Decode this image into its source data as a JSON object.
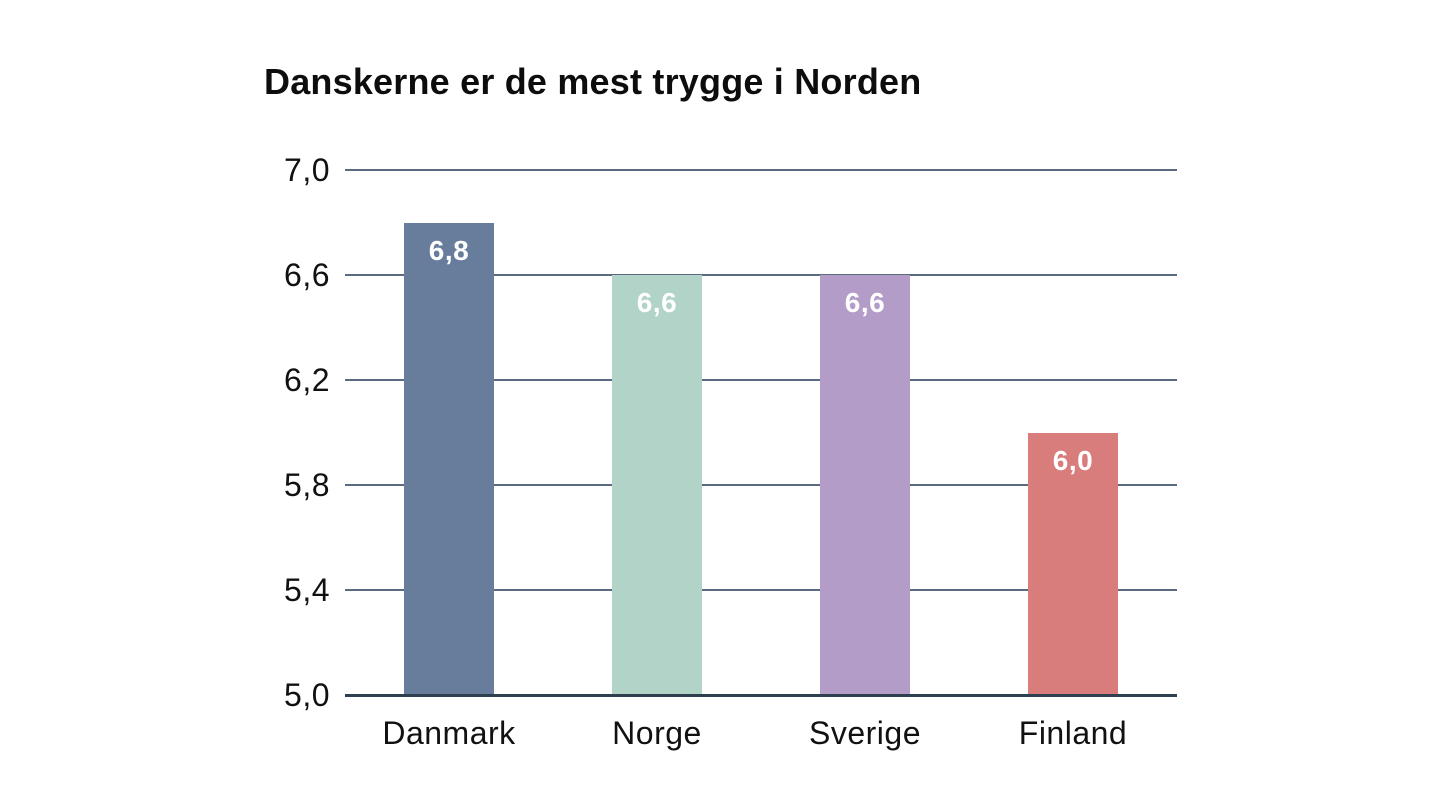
{
  "chart_data": {
    "type": "bar",
    "title": "Danskerne er de mest trygge i Norden",
    "categories": [
      "Danmark",
      "Norge",
      "Sverige",
      "Finland"
    ],
    "values": [
      6.8,
      6.6,
      6.6,
      6.0
    ],
    "value_labels": [
      "6,8",
      "6,6",
      "6,6",
      "6,0"
    ],
    "bar_colors": [
      "#687C9B",
      "#B2D3C8",
      "#B39CC7",
      "#D87D7C"
    ],
    "xlabel": "",
    "ylabel": "",
    "ylim": [
      5.0,
      7.0
    ],
    "yticks": [
      7.0,
      6.6,
      6.2,
      5.8,
      5.4,
      5.0
    ],
    "ytick_labels": [
      "7,0",
      "6,6",
      "6,2",
      "5,8",
      "5,4",
      "5,0"
    ],
    "grid": "horizontal",
    "legend": "none",
    "colors": {
      "title_text": "#0D0D0D",
      "axis_text": "#111111",
      "value_label_text": "#FFFFFF",
      "gridline": "#5A6B80",
      "baseline": "#2E3F4F",
      "background": "#FFFFFF"
    }
  }
}
